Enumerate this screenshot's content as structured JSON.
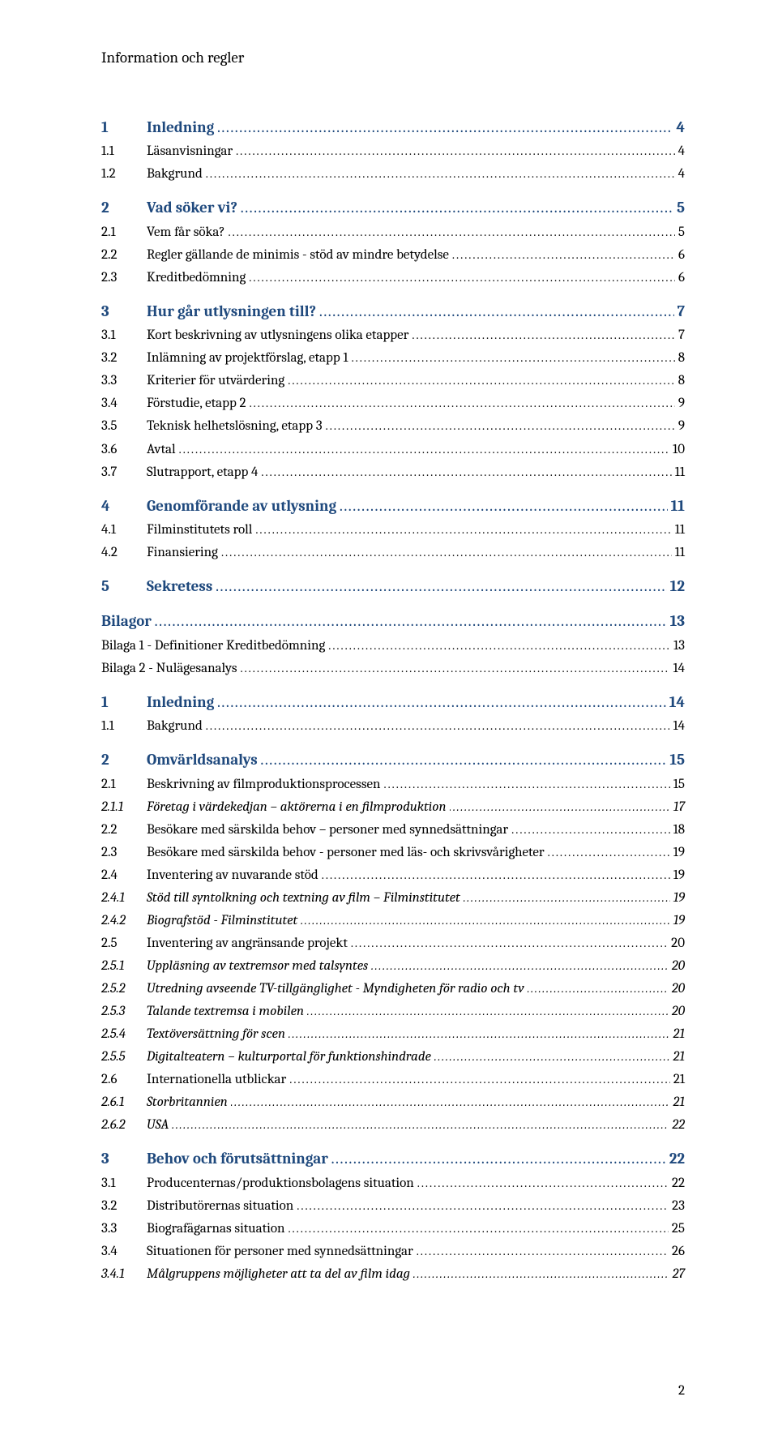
{
  "header": "Information och regler",
  "toc": [
    {
      "level": 0,
      "bold": true,
      "num": "1",
      "label": "Inledning",
      "page": "4"
    },
    {
      "level": 1,
      "num": "1.1",
      "label": "Läsanvisningar",
      "page": "4"
    },
    {
      "level": 1,
      "num": "1.2",
      "label": "Bakgrund",
      "page": "4"
    },
    {
      "level": 0,
      "bold": true,
      "num": "2",
      "label": "Vad söker vi?",
      "page": "5"
    },
    {
      "level": 1,
      "num": "2.1",
      "label": "Vem får söka?",
      "page": "5"
    },
    {
      "level": 1,
      "num": "2.2",
      "label": "Regler gällande de minimis - stöd av mindre betydelse",
      "page": "6"
    },
    {
      "level": 1,
      "num": "2.3",
      "label": "Kreditbedömning",
      "page": "6"
    },
    {
      "level": 0,
      "bold": true,
      "num": "3",
      "label": "Hur går utlysningen till?",
      "page": "7"
    },
    {
      "level": 1,
      "num": "3.1",
      "label": "Kort beskrivning av utlysningens olika etapper",
      "page": "7"
    },
    {
      "level": 1,
      "num": "3.2",
      "label": "Inlämning av projektförslag, etapp 1",
      "page": "8"
    },
    {
      "level": 1,
      "num": "3.3",
      "label": "Kriterier för utvärdering",
      "page": "8"
    },
    {
      "level": 1,
      "num": "3.4",
      "label": "Förstudie, etapp 2",
      "page": "9"
    },
    {
      "level": 1,
      "num": "3.5",
      "label": "Teknisk helhetslösning, etapp 3",
      "page": "9"
    },
    {
      "level": 1,
      "num": "3.6",
      "label": "Avtal",
      "page": "10"
    },
    {
      "level": 1,
      "num": "3.7",
      "label": "Slutrapport, etapp 4",
      "page": "11"
    },
    {
      "level": 0,
      "bold": true,
      "num": "4",
      "label": "Genomförande av utlysning",
      "page": "11"
    },
    {
      "level": 1,
      "num": "4.1",
      "label": "Filminstitutets roll",
      "page": "11"
    },
    {
      "level": 1,
      "num": "4.2",
      "label": "Finansiering",
      "page": "11"
    },
    {
      "level": 0,
      "bold": true,
      "num": "5",
      "label": "Sekretess",
      "page": "12"
    },
    {
      "level": 0,
      "bold": true,
      "nohead": true,
      "num": "",
      "label": "Bilagor",
      "page": "13"
    },
    {
      "level": 1,
      "nohead": true,
      "num": "",
      "label": "Bilaga 1 - Definitioner Kreditbedömning",
      "page": "13"
    },
    {
      "level": 1,
      "nohead": true,
      "num": "",
      "label": "Bilaga 2 - Nulägesanalys",
      "page": "14"
    },
    {
      "level": 0,
      "bold": true,
      "num": "1",
      "label": "Inledning",
      "page": "14"
    },
    {
      "level": 1,
      "num": "1.1",
      "label": "Bakgrund",
      "page": "14"
    },
    {
      "level": 0,
      "bold": true,
      "num": "2",
      "label": "Omvärldsanalys",
      "page": "15"
    },
    {
      "level": 1,
      "num": "2.1",
      "label": "Beskrivning av filmproduktionsprocessen",
      "page": "15"
    },
    {
      "level": 2,
      "num": "2.1.1",
      "label": "Företag i värdekedjan – aktörerna i en filmproduktion",
      "page": "17"
    },
    {
      "level": 1,
      "num": "2.2",
      "label": "Besökare med särskilda behov – personer med synnedsättningar",
      "page": "18"
    },
    {
      "level": 1,
      "num": "2.3",
      "label": "Besökare med särskilda behov - personer med läs- och skrivsvårigheter",
      "page": "19"
    },
    {
      "level": 1,
      "num": "2.4",
      "label": "Inventering av nuvarande stöd",
      "page": "19"
    },
    {
      "level": 2,
      "num": "2.4.1",
      "label": "Stöd till syntolkning och textning av film – Filminstitutet",
      "page": "19"
    },
    {
      "level": 2,
      "num": "2.4.2",
      "label": "Biografstöd - Filminstitutet",
      "page": "19"
    },
    {
      "level": 1,
      "num": "2.5",
      "label": "Inventering av angränsande projekt",
      "page": "20"
    },
    {
      "level": 2,
      "num": "2.5.1",
      "label": "Uppläsning av textremsor med talsyntes",
      "page": "20"
    },
    {
      "level": 2,
      "num": "2.5.2",
      "label": "Utredning avseende TV-tillgänglighet - Myndigheten för radio och tv",
      "page": "20"
    },
    {
      "level": 2,
      "num": "2.5.3",
      "label": "Talande textremsa i mobilen",
      "page": "20"
    },
    {
      "level": 2,
      "num": "2.5.4",
      "label": "Textöversättning för scen",
      "page": "21"
    },
    {
      "level": 2,
      "num": "2.5.5",
      "label": "Digitalteatern – kulturportal för funktionshindrade",
      "page": "21"
    },
    {
      "level": 1,
      "num": "2.6",
      "label": "Internationella utblickar",
      "page": "21"
    },
    {
      "level": 2,
      "num": "2.6.1",
      "label": "Storbritannien",
      "page": "21"
    },
    {
      "level": 2,
      "num": "2.6.2",
      "label": "USA",
      "page": "22"
    },
    {
      "level": 0,
      "bold": true,
      "num": "3",
      "label": "Behov och förutsättningar",
      "page": "22"
    },
    {
      "level": 1,
      "num": "3.1",
      "label": "Producenternas/produktionsbolagens situation",
      "page": "22"
    },
    {
      "level": 1,
      "num": "3.2",
      "label": "Distributörernas situation",
      "page": "23"
    },
    {
      "level": 1,
      "num": "3.3",
      "label": "Biografägarnas situation",
      "page": "25"
    },
    {
      "level": 1,
      "num": "3.4",
      "label": "Situationen för personer med synnedsättningar",
      "page": "26"
    },
    {
      "level": 2,
      "num": "3.4.1",
      "label": "Målgruppens möjligheter att ta del av film idag",
      "page": "27"
    }
  ],
  "page_number": "2",
  "colors": {
    "heading_blue": "#1f497d",
    "text_black": "#000000",
    "background": "#ffffff"
  }
}
